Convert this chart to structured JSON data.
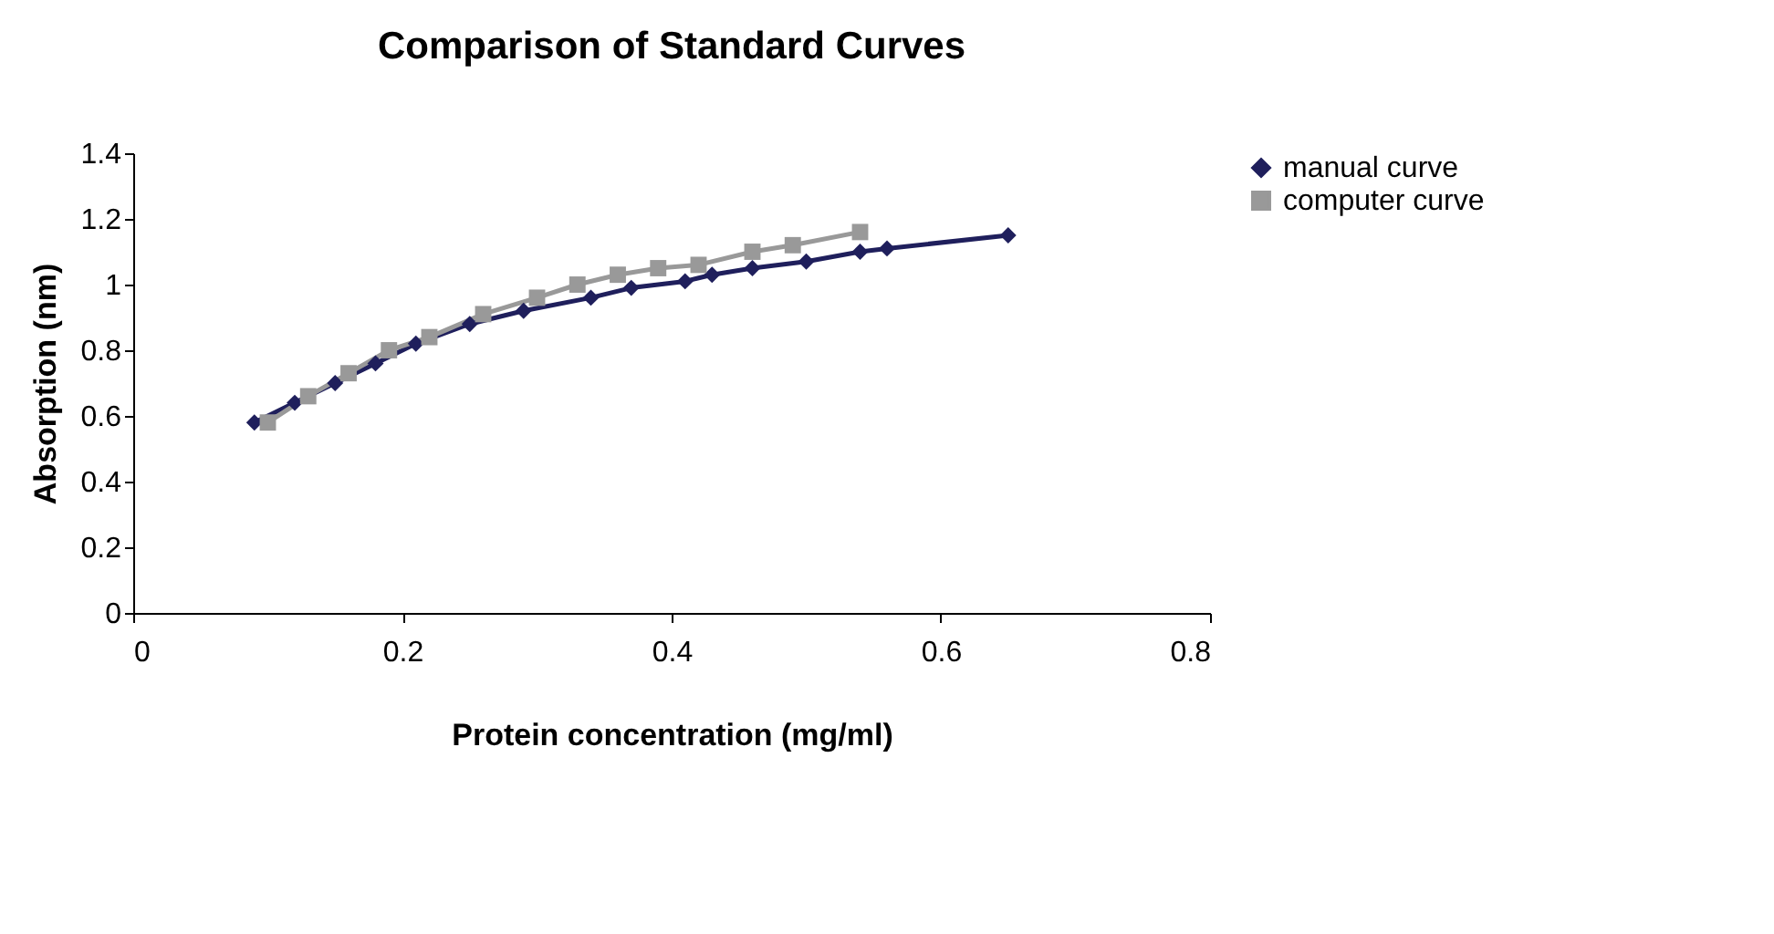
{
  "chart_data": {
    "type": "line",
    "title": "Comparison of Standard Curves",
    "xlabel": "Protein concentration (mg/ml)",
    "ylabel": "Absorption (nm)",
    "series": [
      {
        "name": "manual curve",
        "color": "#1f1f5c",
        "marker": "diamond",
        "x": [
          0.09,
          0.12,
          0.15,
          0.18,
          0.21,
          0.25,
          0.29,
          0.34,
          0.37,
          0.41,
          0.43,
          0.46,
          0.5,
          0.54,
          0.56,
          0.65
        ],
        "values": [
          0.58,
          0.64,
          0.7,
          0.76,
          0.82,
          0.88,
          0.92,
          0.96,
          0.99,
          1.01,
          1.03,
          1.05,
          1.07,
          1.1,
          1.11,
          1.15
        ]
      },
      {
        "name": "computer curve",
        "color": "#999999",
        "marker": "square",
        "x": [
          0.1,
          0.13,
          0.16,
          0.19,
          0.22,
          0.26,
          0.3,
          0.33,
          0.36,
          0.39,
          0.42,
          0.46,
          0.49,
          0.54
        ],
        "values": [
          0.58,
          0.66,
          0.73,
          0.8,
          0.84,
          0.91,
          0.96,
          1.0,
          1.03,
          1.05,
          1.06,
          1.1,
          1.12,
          1.16
        ]
      }
    ],
    "xlim": [
      0,
      0.8
    ],
    "xticks": [
      0,
      0.2,
      0.4,
      0.6,
      0.8
    ],
    "ylim": [
      0,
      1.4
    ],
    "yticks": [
      0,
      0.2,
      0.4,
      0.6,
      0.8,
      1,
      1.2,
      1.4
    ],
    "grid": false,
    "legend": "right"
  }
}
